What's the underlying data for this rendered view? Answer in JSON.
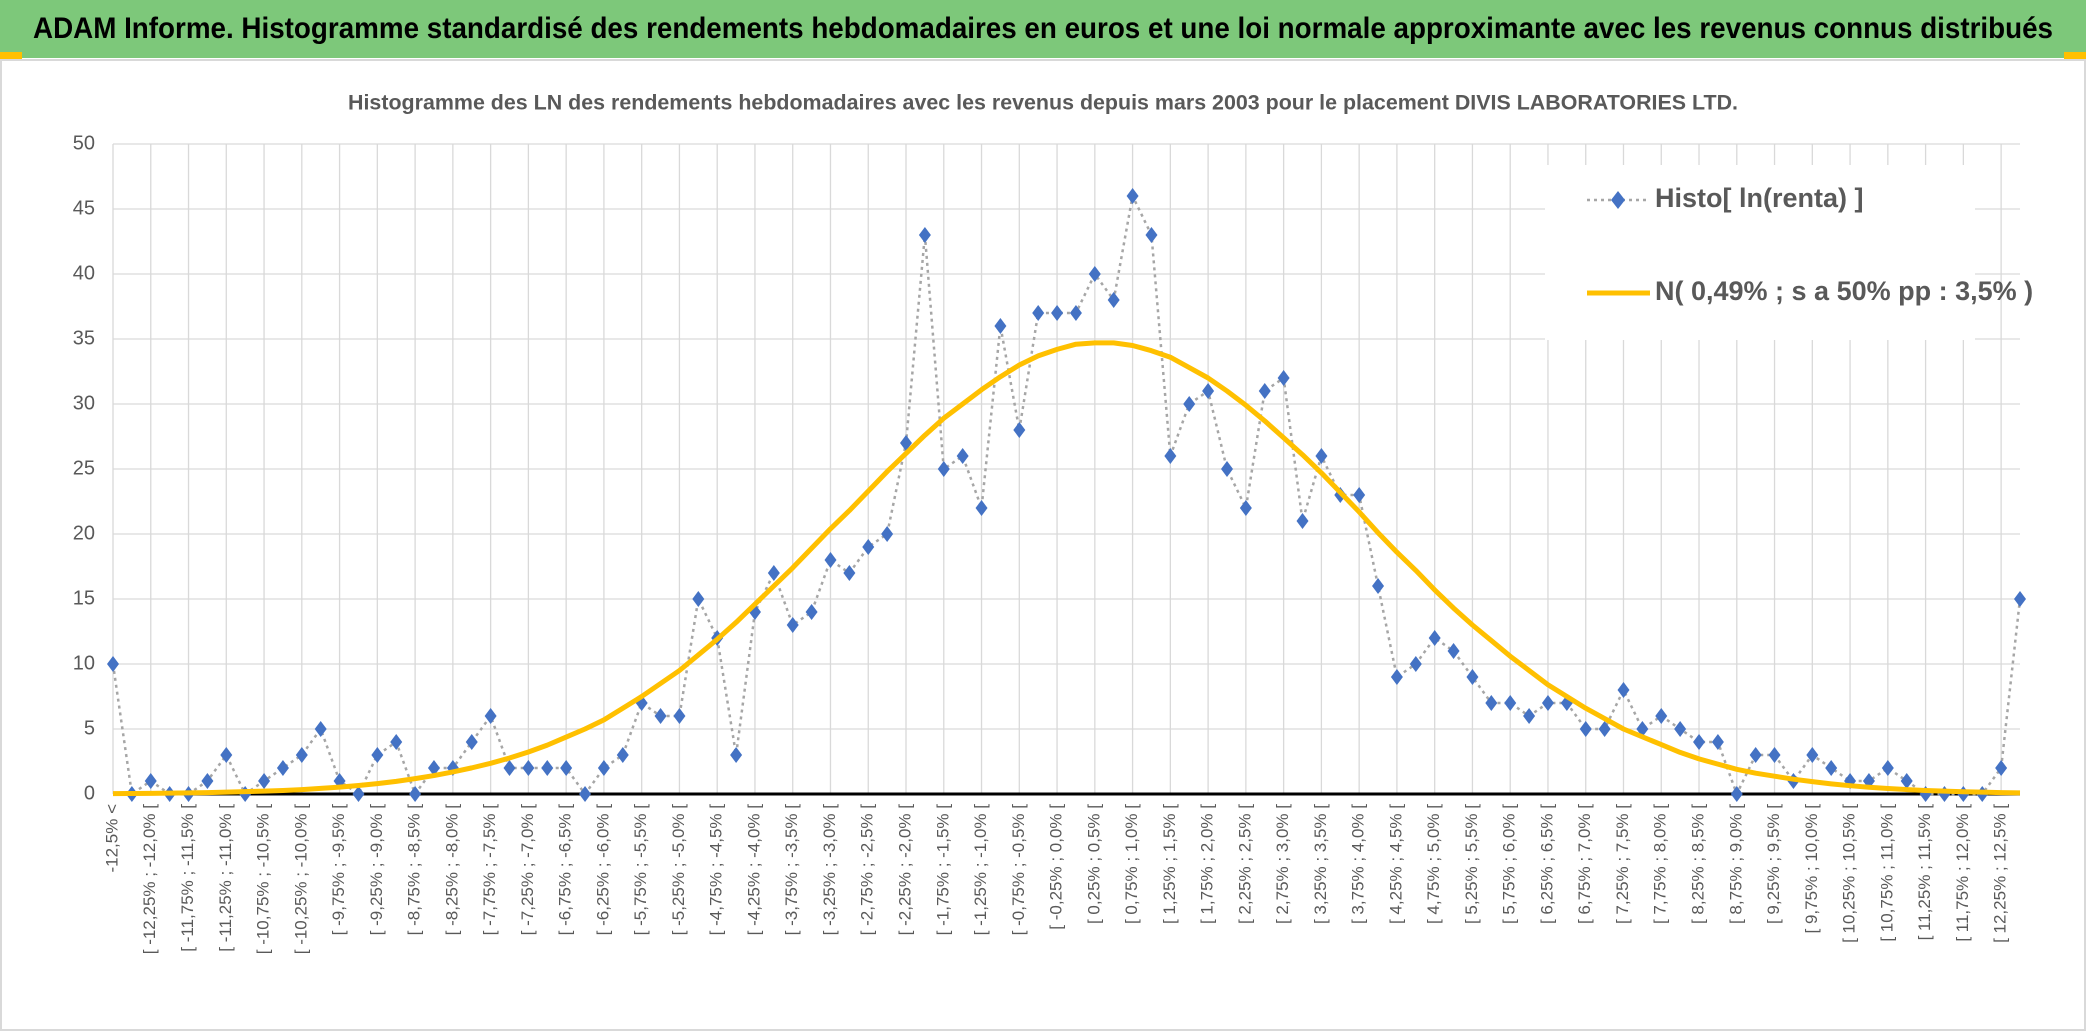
{
  "page_title": "ADAM Informe. Histogramme standardisé des rendements hebdomadaires en euros et une loi normale approximante avec les revenus connus distribués",
  "chart_data": {
    "type": "line",
    "title": "Histogramme des LN des rendements hebdomadaires avec les revenus depuis mars 2003 pour le placement DIVIS LABORATORIES LTD.",
    "categories": [
      "-12,5% <",
      null,
      "[ -12,25% ; -12,0% [",
      null,
      "[ -11,75% ; -11,5% [",
      null,
      "[ -11,25% ; -11,0% [",
      null,
      "[ -10,75% ; -10,5% [",
      null,
      "[ -10,25% ; -10,0% [",
      null,
      "[ -9,75% ; -9,5% [",
      null,
      "[ -9,25% ; -9,0% [",
      null,
      "[ -8,75% ; -8,5% [",
      null,
      "[ -8,25% ; -8,0% [",
      null,
      "[ -7,75% ; -7,5% [",
      null,
      "[ -7,25% ; -7,0% [",
      null,
      "[ -6,75% ; -6,5% [",
      null,
      "[ -6,25% ; -6,0% [",
      null,
      "[ -5,75% ; -5,5% [",
      null,
      "[ -5,25% ; -5,0% [",
      null,
      "[ -4,75% ; -4,5% [",
      null,
      "[ -4,25% ; -4,0% [",
      null,
      "[ -3,75% ; -3,5% [",
      null,
      "[ -3,25% ; -3,0% [",
      null,
      "[ -2,75% ; -2,5% [",
      null,
      "[ -2,25% ; -2,0% [",
      null,
      "[ -1,75% ; -1,5% [",
      null,
      "[ -1,25% ; -1,0% [",
      null,
      "[ -0,75% ; -0,5% [",
      null,
      "[ -0,25% ; 0,0% [",
      null,
      "[ 0,25% ; 0,5% [",
      null,
      "[ 0,75% ; 1,0% [",
      null,
      "[ 1,25% ; 1,5% [",
      null,
      "[ 1,75% ; 2,0% [",
      null,
      "[ 2,25% ; 2,5% [",
      null,
      "[ 2,75% ; 3,0% [",
      null,
      "[ 3,25% ; 3,5% [",
      null,
      "[ 3,75% ; 4,0% [",
      null,
      "[ 4,25% ; 4,5% [",
      null,
      "[ 4,75% ; 5,0% [",
      null,
      "[ 5,25% ; 5,5% [",
      null,
      "[ 5,75% ; 6,0% [",
      null,
      "[ 6,25% ; 6,5% [",
      null,
      "[ 6,75% ; 7,0% [",
      null,
      "[ 7,25% ; 7,5% [",
      null,
      "[ 7,75% ; 8,0% [",
      null,
      "[ 8,25% ; 8,5% [",
      null,
      "[ 8,75% ; 9,0% [",
      null,
      "[ 9,25% ; 9,5% [",
      null,
      "[ 9,75% ; 10,0% [",
      null,
      "[ 10,25% ; 10,5% [",
      null,
      "[ 10,75% ; 11,0% [",
      null,
      "[ 11,25% ; 11,5% [",
      null,
      "[ 11,75% ; 12,0% [",
      null,
      "[ 12,25% ; 12,5% [",
      null
    ],
    "series": [
      {
        "name": "Histo[ ln(renta) ]",
        "color": "#4472c4",
        "line_color": "#a6a6a6",
        "marker": "diamond",
        "line_style": "dotted",
        "values": [
          10,
          0,
          1,
          0,
          0,
          1,
          3,
          0,
          1,
          2,
          3,
          5,
          1,
          0,
          3,
          4,
          0,
          2,
          2,
          4,
          6,
          2,
          2,
          2,
          2,
          0,
          2,
          3,
          7,
          6,
          6,
          15,
          12,
          3,
          14,
          17,
          13,
          14,
          18,
          17,
          19,
          20,
          27,
          43,
          25,
          26,
          22,
          36,
          28,
          37,
          37,
          37,
          40,
          38,
          46,
          43,
          26,
          30,
          31,
          25,
          22,
          31,
          32,
          21,
          26,
          23,
          23,
          16,
          9,
          10,
          12,
          11,
          9,
          7,
          7,
          6,
          7,
          7,
          5,
          5,
          8,
          5,
          6,
          5,
          4,
          4,
          0,
          3,
          3,
          1,
          3,
          2,
          1,
          1,
          2,
          1,
          0,
          0,
          0,
          0,
          2,
          15
        ]
      },
      {
        "name": "N( 0,49% ; s a 50% pp : 3,5% )",
        "color": "#ffc000",
        "marker": "none",
        "line_style": "solid",
        "values": [
          0.03,
          0.04,
          0.05,
          0.07,
          0.09,
          0.11,
          0.14,
          0.18,
          0.22,
          0.27,
          0.34,
          0.43,
          0.53,
          0.65,
          0.8,
          0.97,
          1.18,
          1.42,
          1.7,
          2.01,
          2.36,
          2.77,
          3.23,
          3.76,
          4.38,
          5.0,
          5.7,
          6.6,
          7.5,
          8.5,
          9.5,
          10.7,
          11.9,
          13.2,
          14.6,
          16.0,
          17.4,
          18.9,
          20.4,
          21.8,
          23.3,
          24.8,
          26.2,
          27.6,
          28.9,
          30.0,
          31.1,
          32.1,
          33.0,
          33.7,
          34.2,
          34.6,
          34.7,
          34.7,
          34.5,
          34.1,
          33.6,
          32.8,
          32.0,
          31.0,
          29.9,
          28.7,
          27.4,
          26.1,
          24.7,
          23.2,
          21.7,
          20.1,
          18.6,
          17.2,
          15.7,
          14.3,
          13.0,
          11.8,
          10.6,
          9.5,
          8.4,
          7.5,
          6.6,
          5.8,
          5.0,
          4.4,
          3.8,
          3.2,
          2.7,
          2.3,
          1.9,
          1.6,
          1.37,
          1.14,
          0.95,
          0.78,
          0.64,
          0.52,
          0.42,
          0.34,
          0.27,
          0.22,
          0.17,
          0.14,
          0.11,
          0.09
        ]
      }
    ],
    "ylim": [
      0,
      50
    ],
    "yticks": [
      0,
      5,
      10,
      15,
      20,
      25,
      30,
      35,
      40,
      45,
      50
    ],
    "grid": true,
    "legend": "upper right"
  }
}
